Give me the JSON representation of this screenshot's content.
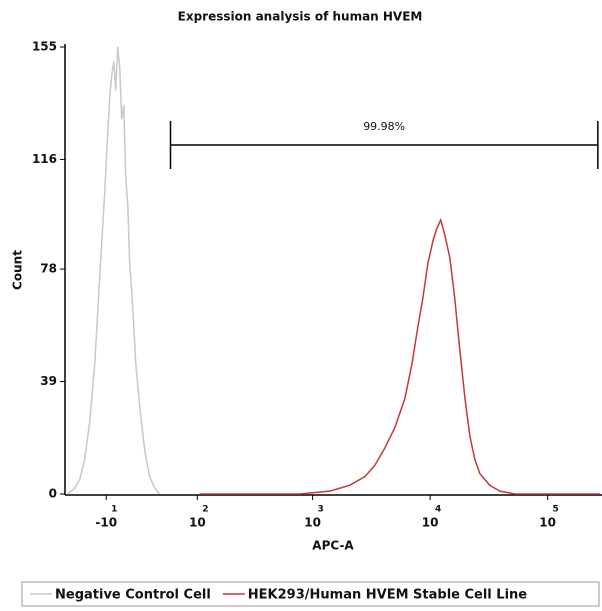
{
  "chart_data": {
    "type": "line",
    "title": "Expression analysis of human HVEM",
    "x_label": "APC-A",
    "y_label": "Count",
    "x_scale": "biexponential",
    "xlim": [
      -54,
      290000
    ],
    "ylim": [
      0,
      155
    ],
    "xticks": [
      {
        "value": -10,
        "label": "-10",
        "exponent": "1"
      },
      {
        "value": 100,
        "label": "10",
        "exponent": "2"
      },
      {
        "value": 1000,
        "label": "10",
        "exponent": "3"
      },
      {
        "value": 10000,
        "label": "10",
        "exponent": "4"
      },
      {
        "value": 100000,
        "label": "10",
        "exponent": "5"
      }
    ],
    "yticks": [
      0,
      39,
      78,
      116,
      155
    ],
    "gate": {
      "label": "99.98%",
      "range": [
        54,
        278000
      ]
    },
    "series": [
      {
        "name": "Negative Control Cell",
        "color": "#c8c8c8",
        "x": [
          -50.4,
          -41.6,
          -35.9,
          -30.5,
          -25.4,
          -20.5,
          -15.9,
          -11.3,
          -8.7,
          -6.9,
          -5.2,
          -3.4,
          -1.7,
          0,
          1.7,
          3.4,
          5.2,
          6.9,
          8.7,
          10.4,
          13.1,
          15.9,
          19.6,
          24.4,
          29.4,
          34.8,
          40.4
        ],
        "values": [
          0,
          2,
          5,
          12,
          25,
          45,
          75,
          105,
          125,
          138,
          145,
          150,
          140,
          155,
          148,
          130,
          135,
          110,
          100,
          80,
          65,
          45,
          30,
          15,
          6,
          2,
          0
        ]
      },
      {
        "name": "HEK293/Human HVEM Stable Cell Line",
        "color": "#c0393b",
        "x": [
          105,
          778,
          1400,
          2070,
          2780,
          3390,
          4120,
          5010,
          6090,
          7000,
          7870,
          8680,
          9570,
          10600,
          11400,
          12300,
          13300,
          14700,
          16200,
          17900,
          19800,
          21800,
          24000,
          26500,
          32200,
          39200,
          52600,
          278000
        ],
        "values": [
          0,
          0,
          1,
          3,
          6,
          10,
          16,
          23,
          33,
          45,
          58,
          68,
          80,
          88,
          92,
          95,
          90,
          82,
          68,
          50,
          33,
          20,
          12,
          7,
          3,
          1,
          0,
          0
        ]
      }
    ]
  }
}
